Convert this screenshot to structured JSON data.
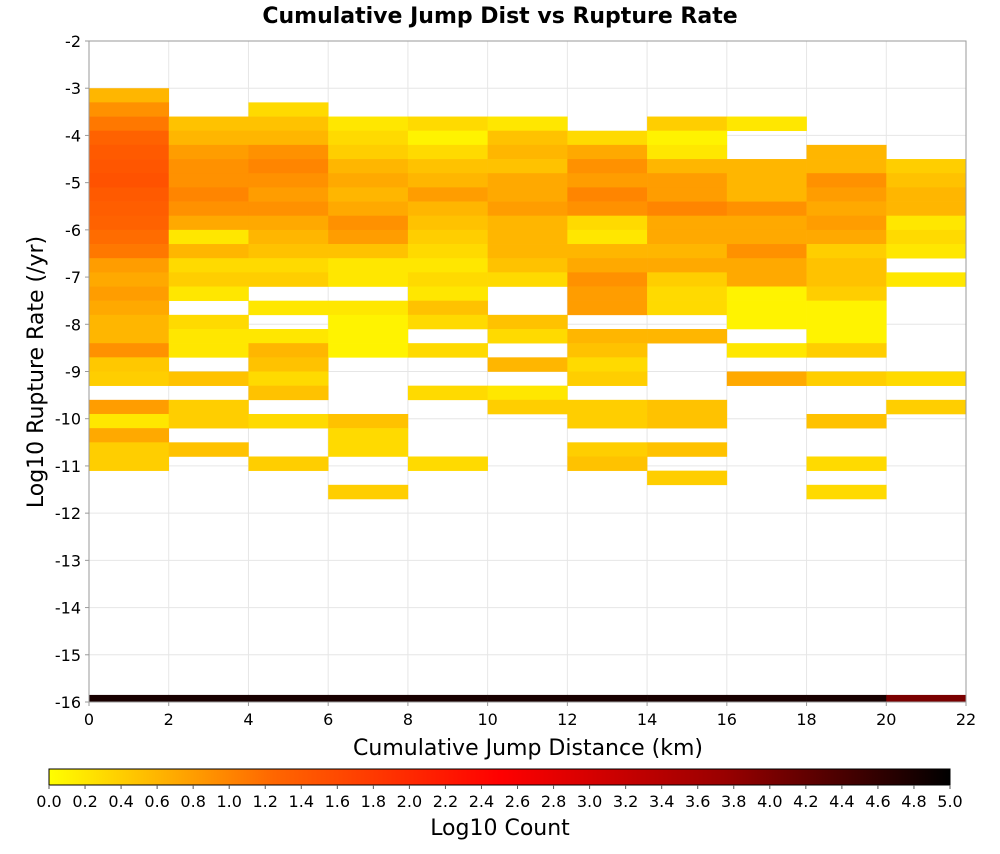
{
  "chart_data": {
    "type": "heatmap",
    "title": "Cumulative Jump Dist vs Rupture Rate",
    "xlabel": "Cumulative Jump Distance (km)",
    "ylabel": "Log10 Rupture Rate (/yr)",
    "xlim": [
      0,
      22
    ],
    "ylim": [
      -16,
      -2
    ],
    "x_ticks": [
      "0",
      "2",
      "4",
      "6",
      "8",
      "10",
      "12",
      "14",
      "16",
      "18",
      "20",
      "22"
    ],
    "y_ticks": [
      "-2",
      "-3",
      "-4",
      "-5",
      "-6",
      "-7",
      "-8",
      "-9",
      "-10",
      "-11",
      "-12",
      "-13",
      "-14",
      "-15",
      "-16"
    ],
    "grid": true,
    "x_bin_width": 2,
    "y_bin_height": 0.3,
    "colorbar": {
      "label": "Log10 Count",
      "range": [
        0,
        5
      ],
      "ticks": [
        "0.0",
        "0.2",
        "0.4",
        "0.6",
        "0.8",
        "1.0",
        "1.2",
        "1.4",
        "1.6",
        "1.8",
        "2.0",
        "2.2",
        "2.4",
        "2.6",
        "2.8",
        "3.0",
        "3.2",
        "3.4",
        "3.6",
        "3.8",
        "4.0",
        "4.2",
        "4.4",
        "4.6",
        "4.8",
        "5.0"
      ],
      "colors": [
        "#ffff00",
        "#ff6600",
        "#ff0000",
        "#990000",
        "#000000"
      ],
      "placement": "bottom"
    },
    "cells": [
      [
        0,
        -3.3,
        0.6
      ],
      [
        0,
        -3.6,
        0.9
      ],
      [
        0,
        -3.9,
        1.1
      ],
      [
        0,
        -4.2,
        1.3
      ],
      [
        0,
        -4.5,
        1.4
      ],
      [
        0,
        -4.8,
        1.45
      ],
      [
        0,
        -5.1,
        1.5
      ],
      [
        0,
        -5.4,
        1.4
      ],
      [
        0,
        -5.7,
        1.35
      ],
      [
        0,
        -6.0,
        1.3
      ],
      [
        0,
        -6.3,
        1.2
      ],
      [
        0,
        -6.6,
        1.1
      ],
      [
        0,
        -6.9,
        0.8
      ],
      [
        0,
        -7.2,
        0.7
      ],
      [
        0,
        -7.5,
        0.8
      ],
      [
        0,
        -7.8,
        0.7
      ],
      [
        0,
        -8.1,
        0.6
      ],
      [
        0,
        -8.4,
        0.6
      ],
      [
        0,
        -8.7,
        0.9
      ],
      [
        0,
        -9.0,
        0.45
      ],
      [
        0,
        -9.3,
        0.4
      ],
      [
        0,
        -9.9,
        0.8
      ],
      [
        0,
        -10.2,
        0.2
      ],
      [
        0,
        -10.5,
        0.7
      ],
      [
        0,
        -10.8,
        0.4
      ],
      [
        0,
        -11.1,
        0.4
      ],
      [
        2,
        -3.9,
        0.5
      ],
      [
        2,
        -4.2,
        0.6
      ],
      [
        2,
        -4.5,
        0.8
      ],
      [
        2,
        -4.8,
        0.9
      ],
      [
        2,
        -5.1,
        0.9
      ],
      [
        2,
        -5.4,
        1.0
      ],
      [
        2,
        -5.7,
        0.9
      ],
      [
        2,
        -6.0,
        0.7
      ],
      [
        2,
        -6.3,
        0.2
      ],
      [
        2,
        -6.6,
        0.6
      ],
      [
        2,
        -6.9,
        0.3
      ],
      [
        2,
        -7.2,
        0.4
      ],
      [
        2,
        -7.5,
        0.2
      ],
      [
        2,
        -8.1,
        0.3
      ],
      [
        2,
        -8.4,
        0.2
      ],
      [
        2,
        -8.7,
        0.2
      ],
      [
        2,
        -9.3,
        0.5
      ],
      [
        2,
        -9.9,
        0.4
      ],
      [
        2,
        -10.2,
        0.4
      ],
      [
        2,
        -10.8,
        0.5
      ],
      [
        4,
        -3.6,
        0.3
      ],
      [
        4,
        -3.9,
        0.5
      ],
      [
        4,
        -4.2,
        0.6
      ],
      [
        4,
        -4.5,
        0.9
      ],
      [
        4,
        -4.8,
        1.0
      ],
      [
        4,
        -5.1,
        0.9
      ],
      [
        4,
        -5.4,
        0.8
      ],
      [
        4,
        -5.7,
        0.9
      ],
      [
        4,
        -6.0,
        0.7
      ],
      [
        4,
        -6.3,
        0.6
      ],
      [
        4,
        -6.6,
        0.5
      ],
      [
        4,
        -6.9,
        0.3
      ],
      [
        4,
        -7.2,
        0.4
      ],
      [
        4,
        -7.8,
        0.2
      ],
      [
        4,
        -8.4,
        0.2
      ],
      [
        4,
        -8.7,
        0.6
      ],
      [
        4,
        -9.0,
        0.5
      ],
      [
        4,
        -9.3,
        0.3
      ],
      [
        4,
        -9.6,
        0.5
      ],
      [
        4,
        -10.2,
        0.3
      ],
      [
        4,
        -11.1,
        0.4
      ],
      [
        6,
        -3.9,
        0.2
      ],
      [
        6,
        -4.2,
        0.3
      ],
      [
        6,
        -4.5,
        0.4
      ],
      [
        6,
        -4.8,
        0.6
      ],
      [
        6,
        -5.1,
        0.7
      ],
      [
        6,
        -5.4,
        0.6
      ],
      [
        6,
        -5.7,
        0.7
      ],
      [
        6,
        -6.0,
        0.9
      ],
      [
        6,
        -6.3,
        0.8
      ],
      [
        6,
        -6.6,
        0.5
      ],
      [
        6,
        -6.9,
        0.2
      ],
      [
        6,
        -7.2,
        0.2
      ],
      [
        6,
        -7.8,
        0.2
      ],
      [
        6,
        -8.1,
        0.1
      ],
      [
        6,
        -8.4,
        0.1
      ],
      [
        6,
        -8.7,
        0.1
      ],
      [
        6,
        -10.2,
        0.5
      ],
      [
        6,
        -10.5,
        0.3
      ],
      [
        6,
        -10.8,
        0.3
      ],
      [
        6,
        -11.7,
        0.4
      ],
      [
        8,
        -3.9,
        0.3
      ],
      [
        8,
        -4.2,
        0.1
      ],
      [
        8,
        -4.5,
        0.3
      ],
      [
        8,
        -4.8,
        0.5
      ],
      [
        8,
        -5.1,
        0.6
      ],
      [
        8,
        -5.4,
        0.8
      ],
      [
        8,
        -5.7,
        0.6
      ],
      [
        8,
        -6.0,
        0.5
      ],
      [
        8,
        -6.3,
        0.4
      ],
      [
        8,
        -6.6,
        0.3
      ],
      [
        8,
        -6.9,
        0.2
      ],
      [
        8,
        -7.2,
        0.3
      ],
      [
        8,
        -7.5,
        0.2
      ],
      [
        8,
        -7.8,
        0.5
      ],
      [
        8,
        -8.1,
        0.3
      ],
      [
        8,
        -8.7,
        0.3
      ],
      [
        8,
        -9.6,
        0.3
      ],
      [
        8,
        -11.1,
        0.3
      ],
      [
        10,
        -3.9,
        0.2
      ],
      [
        10,
        -4.2,
        0.5
      ],
      [
        10,
        -4.5,
        0.6
      ],
      [
        10,
        -4.8,
        0.5
      ],
      [
        10,
        -5.1,
        0.7
      ],
      [
        10,
        -5.4,
        0.7
      ],
      [
        10,
        -5.7,
        0.8
      ],
      [
        10,
        -6.0,
        0.6
      ],
      [
        10,
        -6.3,
        0.6
      ],
      [
        10,
        -6.6,
        0.6
      ],
      [
        10,
        -6.9,
        0.5
      ],
      [
        10,
        -7.2,
        0.3
      ],
      [
        10,
        -8.1,
        0.5
      ],
      [
        10,
        -8.4,
        0.3
      ],
      [
        10,
        -9.0,
        0.6
      ],
      [
        10,
        -9.6,
        0.2
      ],
      [
        10,
        -9.9,
        0.4
      ],
      [
        12,
        -4.2,
        0.3
      ],
      [
        12,
        -4.5,
        0.7
      ],
      [
        12,
        -4.8,
        0.9
      ],
      [
        12,
        -5.1,
        0.8
      ],
      [
        12,
        -5.4,
        1.0
      ],
      [
        12,
        -5.7,
        0.9
      ],
      [
        12,
        -6.0,
        0.3
      ],
      [
        12,
        -6.3,
        0.2
      ],
      [
        12,
        -6.6,
        0.6
      ],
      [
        12,
        -6.9,
        0.7
      ],
      [
        12,
        -7.2,
        0.9
      ],
      [
        12,
        -7.5,
        0.8
      ],
      [
        12,
        -7.8,
        0.8
      ],
      [
        12,
        -8.4,
        0.6
      ],
      [
        12,
        -8.7,
        0.5
      ],
      [
        12,
        -9.0,
        0.3
      ],
      [
        12,
        -9.3,
        0.4
      ],
      [
        12,
        -9.9,
        0.4
      ],
      [
        12,
        -10.2,
        0.4
      ],
      [
        12,
        -10.8,
        0.4
      ],
      [
        12,
        -11.1,
        0.5
      ],
      [
        14,
        -3.9,
        0.4
      ],
      [
        14,
        -4.2,
        0.1
      ],
      [
        14,
        -4.5,
        0.2
      ],
      [
        14,
        -4.8,
        0.6
      ],
      [
        14,
        -5.1,
        0.8
      ],
      [
        14,
        -5.4,
        0.8
      ],
      [
        14,
        -5.7,
        1.0
      ],
      [
        14,
        -6.0,
        0.7
      ],
      [
        14,
        -6.3,
        0.7
      ],
      [
        14,
        -6.6,
        0.6
      ],
      [
        14,
        -6.9,
        0.7
      ],
      [
        14,
        -7.2,
        0.4
      ],
      [
        14,
        -7.5,
        0.3
      ],
      [
        14,
        -7.8,
        0.3
      ],
      [
        14,
        -8.4,
        0.6
      ],
      [
        14,
        -9.9,
        0.5
      ],
      [
        14,
        -10.2,
        0.5
      ],
      [
        14,
        -10.8,
        0.5
      ],
      [
        14,
        -11.4,
        0.4
      ],
      [
        16,
        -3.9,
        0.2
      ],
      [
        16,
        -4.8,
        0.6
      ],
      [
        16,
        -5.1,
        0.6
      ],
      [
        16,
        -5.4,
        0.6
      ],
      [
        16,
        -5.7,
        0.9
      ],
      [
        16,
        -6.0,
        0.7
      ],
      [
        16,
        -6.3,
        0.7
      ],
      [
        16,
        -6.6,
        0.9
      ],
      [
        16,
        -6.9,
        0.7
      ],
      [
        16,
        -7.2,
        0.7
      ],
      [
        16,
        -7.5,
        0.1
      ],
      [
        16,
        -7.8,
        0.1
      ],
      [
        16,
        -8.1,
        0.1
      ],
      [
        16,
        -8.7,
        0.2
      ],
      [
        16,
        -9.3,
        0.7
      ],
      [
        18,
        -4.5,
        0.6
      ],
      [
        18,
        -4.8,
        0.6
      ],
      [
        18,
        -5.1,
        0.9
      ],
      [
        18,
        -5.4,
        0.8
      ],
      [
        18,
        -5.7,
        0.7
      ],
      [
        18,
        -6.0,
        0.8
      ],
      [
        18,
        -6.3,
        0.7
      ],
      [
        18,
        -6.6,
        0.4
      ],
      [
        18,
        -6.9,
        0.5
      ],
      [
        18,
        -7.2,
        0.5
      ],
      [
        18,
        -7.5,
        0.4
      ],
      [
        18,
        -7.8,
        0.1
      ],
      [
        18,
        -8.1,
        0.1
      ],
      [
        18,
        -8.4,
        0.1
      ],
      [
        18,
        -8.7,
        0.4
      ],
      [
        18,
        -9.3,
        0.4
      ],
      [
        18,
        -10.2,
        0.5
      ],
      [
        18,
        -11.1,
        0.3
      ],
      [
        18,
        -11.7,
        0.3
      ],
      [
        20,
        -4.8,
        0.4
      ],
      [
        20,
        -5.1,
        0.5
      ],
      [
        20,
        -5.4,
        0.6
      ],
      [
        20,
        -5.7,
        0.6
      ],
      [
        20,
        -6.0,
        0.2
      ],
      [
        20,
        -6.3,
        0.3
      ],
      [
        20,
        -6.6,
        0.2
      ],
      [
        20,
        -7.2,
        0.2
      ],
      [
        20,
        -9.3,
        0.3
      ],
      [
        20,
        -9.9,
        0.4
      ]
    ],
    "baseline_row": {
      "y": -16.0,
      "values": [
        4.8,
        4.8,
        4.8,
        4.8,
        4.8,
        4.8,
        4.8,
        4.8,
        4.8,
        4.8,
        4.0
      ]
    }
  }
}
